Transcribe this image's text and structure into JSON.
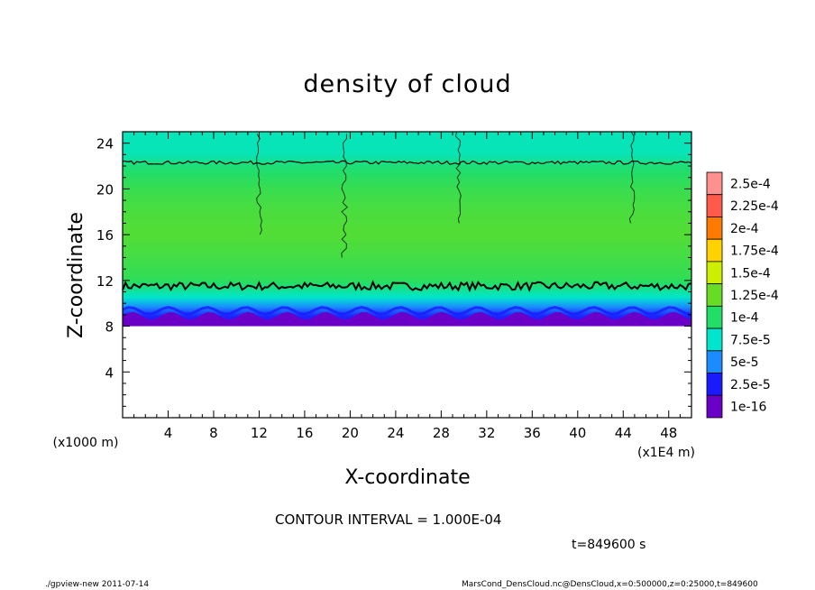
{
  "chart_data": {
    "type": "heatmap",
    "title": "density of cloud",
    "xlabel": "X-coordinate",
    "ylabel": "Z-coordinate",
    "x_unit_label": "(x1E4 m)",
    "y_unit_label": "(x1000 m)",
    "xlim": [
      0,
      50
    ],
    "ylim": [
      0,
      25
    ],
    "x_ticks": [
      4,
      8,
      12,
      16,
      20,
      24,
      28,
      32,
      36,
      40,
      44,
      48
    ],
    "y_ticks": [
      4,
      8,
      12,
      16,
      20,
      24
    ],
    "colorbar": {
      "labels": [
        "2.5e-4",
        "2.25e-4",
        "2e-4",
        "1.75e-4",
        "1.5e-4",
        "1.25e-4",
        "1e-4",
        "7.5e-5",
        "5e-5",
        "2.5e-5",
        "1e-16"
      ],
      "colors": [
        "#ff9090",
        "#ff5a4a",
        "#ff7a00",
        "#ffd200",
        "#ccee00",
        "#66dd22",
        "#22dd66",
        "#00e6cc",
        "#1a8cff",
        "#1a1aff",
        "#6a00c8"
      ]
    },
    "profile_z": [
      8.0,
      8.5,
      9.0,
      9.5,
      10.0,
      10.5,
      11.0,
      11.5,
      12.0,
      14.0,
      16.0,
      18.0,
      20.0,
      22.0,
      23.0,
      25.0
    ],
    "profile_value": [
      1e-16,
      2e-05,
      3e-05,
      4.5e-05,
      6e-05,
      7.5e-05,
      8.5e-05,
      9.5e-05,
      0.000105,
      0.000112,
      0.000118,
      0.000115,
      0.000108,
      9.6e-05,
      8e-05,
      8e-05
    ],
    "cloud_base_z": 8.0,
    "contour_levels_z": [
      11.5,
      22.3
    ]
  },
  "annotations": {
    "contour_interval": "CONTOUR INTERVAL = 1.000E-04",
    "time": "t=849600 s"
  },
  "footer": {
    "left": "./gpview-new   2011-07-14",
    "right": "MarsCond_DensCloud.nc@DensCloud,x=0:500000,z=0:25000,t=849600"
  }
}
